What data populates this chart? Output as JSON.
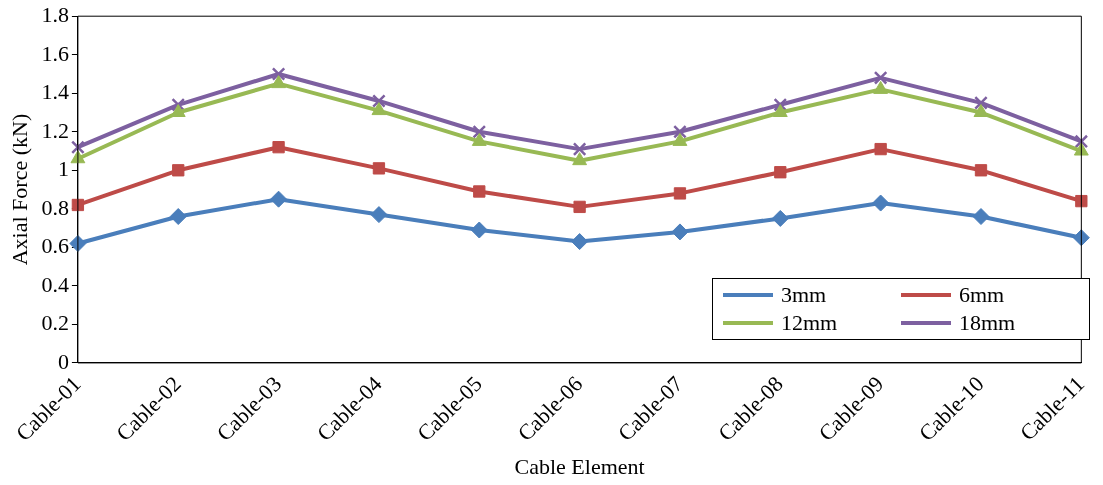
{
  "chart_data": {
    "type": "line",
    "xlabel": "Cable Element",
    "ylabel": "Axial Force (kN)",
    "categories": [
      "Cable-01",
      "Cable-02",
      "Cable-03",
      "Cable-04",
      "Cable-05",
      "Cable-06",
      "Cable-07",
      "Cable-08",
      "Cable-09",
      "Cable-10",
      "Cable-11"
    ],
    "ylim": [
      0,
      1.8
    ],
    "yticks": [
      0,
      0.2,
      0.4,
      0.6,
      0.8,
      1,
      1.2,
      1.4,
      1.6,
      1.8
    ],
    "grid": false,
    "legend": "bottom right",
    "line_style": "solid",
    "series": [
      {
        "name": "3mm",
        "color": "#4a7ebb",
        "marker": "diamond",
        "values": [
          0.62,
          0.76,
          0.85,
          0.77,
          0.69,
          0.63,
          0.68,
          0.75,
          0.83,
          0.76,
          0.65
        ]
      },
      {
        "name": "6mm",
        "color": "#be4b48",
        "marker": "square",
        "values": [
          0.82,
          1.0,
          1.12,
          1.01,
          0.89,
          0.81,
          0.88,
          0.99,
          1.11,
          1.0,
          0.84
        ]
      },
      {
        "name": "12mm",
        "color": "#98b954",
        "marker": "triangle",
        "values": [
          1.06,
          1.3,
          1.45,
          1.31,
          1.15,
          1.05,
          1.15,
          1.3,
          1.42,
          1.3,
          1.1
        ]
      },
      {
        "name": "18mm",
        "color": "#7d60a0",
        "marker": "cross",
        "values": [
          1.12,
          1.34,
          1.5,
          1.36,
          1.2,
          1.11,
          1.2,
          1.34,
          1.48,
          1.35,
          1.15
        ]
      }
    ]
  }
}
